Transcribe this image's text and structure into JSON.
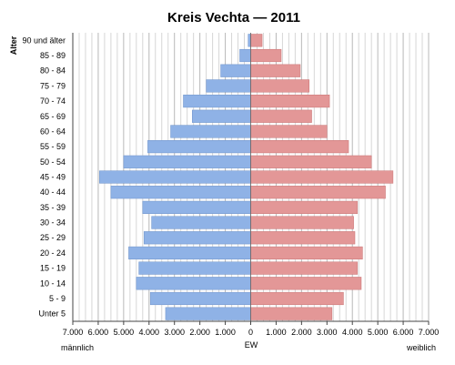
{
  "chart_data": {
    "type": "bar",
    "orientation": "horizontal-population-pyramid",
    "title": "Kreis Vechta — 2011",
    "ylabel": "Alter",
    "xlabel": "EW",
    "left_label": "männlich",
    "right_label": "weiblich",
    "xlim": [
      -7000,
      7000
    ],
    "x_ticks": [
      "7.000",
      "6.000",
      "5.000",
      "4.000",
      "3.000",
      "2.000",
      "1.000",
      "0",
      "1.000",
      "2.000",
      "3.000",
      "4.000",
      "5.000",
      "6.000",
      "7.000"
    ],
    "grid": true,
    "categories": [
      "90 und älter",
      "85 - 89",
      "80 - 84",
      "75 - 79",
      "70 - 74",
      "65 - 69",
      "60 - 64",
      "55 - 59",
      "50 - 54",
      "45 - 49",
      "40 - 44",
      "35 - 39",
      "30 - 34",
      "25 - 29",
      "20 - 24",
      "15 - 19",
      "10 - 14",
      "5 - 9",
      "Unter 5"
    ],
    "series": [
      {
        "name": "männlich",
        "color": "#8fb2e6",
        "values": [
          100,
          430,
          1180,
          1750,
          2650,
          2300,
          3150,
          4050,
          5000,
          5950,
          5500,
          4250,
          3900,
          4200,
          4800,
          4400,
          4500,
          3950,
          3350
        ]
      },
      {
        "name": "weiblich",
        "color": "#e39797",
        "values": [
          450,
          1200,
          1950,
          2300,
          3100,
          2400,
          3000,
          3850,
          4750,
          5600,
          5300,
          4200,
          4050,
          4100,
          4400,
          4200,
          4350,
          3650,
          3200
        ]
      }
    ]
  }
}
